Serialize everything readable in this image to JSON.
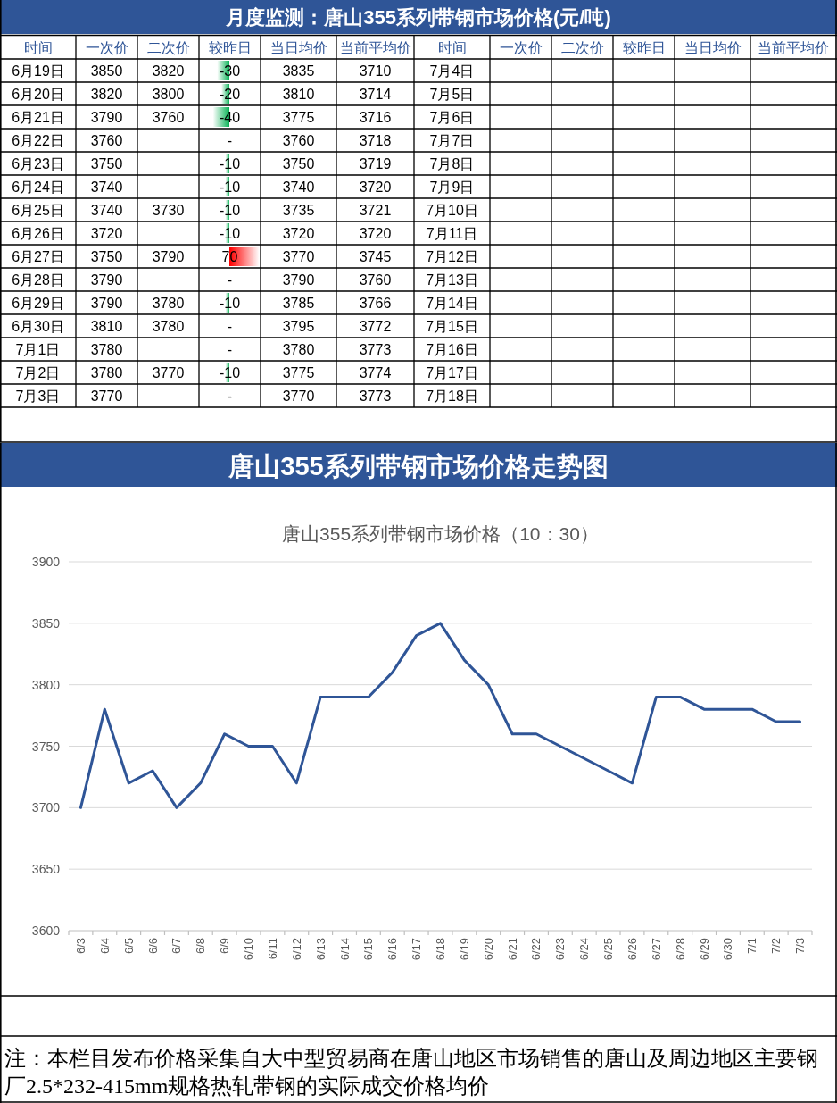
{
  "chart_data": [
    {
      "type": "heatmap",
      "title": "月度监测：唐山355系列带钢市场价格(元/吨)",
      "ylabel": "时间",
      "y2label": "时间",
      "categories": [
        "一次价",
        "二次价",
        "较昨日",
        "当日均价",
        "当前平均价",
        "一次价",
        "二次价",
        "较昨日",
        "当日均价",
        "当前平均价"
      ],
      "y_categories": [
        "6月19日",
        "6月20日",
        "6月21日",
        "6月22日",
        "6月23日",
        "6月24日",
        "6月25日",
        "6月26日",
        "6月27日",
        "6月28日",
        "6月29日",
        "6月30日",
        "7月1日",
        "7月2日",
        "7月3日"
      ],
      "y2_categories": [
        "7月4日",
        "7月5日",
        "7月6日",
        "7月7日",
        "7月8日",
        "7月9日",
        "7月10日",
        "7月11日",
        "7月12日",
        "7月13日",
        "7月14日",
        "7月15日",
        "7月16日",
        "7月17日",
        "7月18日"
      ],
      "cells": [
        [
          3850,
          3820,
          -30,
          3835,
          3710,
          null,
          null,
          null,
          null,
          null
        ],
        [
          3820,
          3800,
          -20,
          3810,
          3714,
          null,
          null,
          null,
          null,
          null
        ],
        [
          3790,
          3760,
          -40,
          3775,
          3716,
          null,
          null,
          null,
          null,
          null
        ],
        [
          3760,
          null,
          null,
          3760,
          3718,
          null,
          null,
          null,
          null,
          null
        ],
        [
          3750,
          null,
          -10,
          3750,
          3719,
          null,
          null,
          null,
          null,
          null
        ],
        [
          3740,
          null,
          -10,
          3740,
          3720,
          null,
          null,
          null,
          null,
          null
        ],
        [
          3740,
          3730,
          -10,
          3735,
          3721,
          null,
          null,
          null,
          null,
          null
        ],
        [
          3720,
          null,
          -10,
          3720,
          3720,
          null,
          null,
          null,
          null,
          null
        ],
        [
          3750,
          3790,
          70,
          3770,
          3745,
          null,
          null,
          null,
          null,
          null
        ],
        [
          3790,
          null,
          null,
          3790,
          3760,
          null,
          null,
          null,
          null,
          null
        ],
        [
          3790,
          3780,
          -10,
          3785,
          3766,
          null,
          null,
          null,
          null,
          null
        ],
        [
          3810,
          3780,
          null,
          3795,
          3772,
          null,
          null,
          null,
          null,
          null
        ],
        [
          3780,
          null,
          null,
          3780,
          3773,
          null,
          null,
          null,
          null,
          null
        ],
        [
          3780,
          3770,
          -10,
          3775,
          3774,
          null,
          null,
          null,
          null,
          null
        ],
        [
          3770,
          null,
          null,
          3770,
          3773,
          null,
          null,
          null,
          null,
          null
        ]
      ],
      "cell_labels": [
        [
          "3850",
          "3820",
          "-30",
          "3835",
          "3710",
          null,
          null,
          null,
          null,
          null
        ],
        [
          "3820",
          "3800",
          "-20",
          "3810",
          "3714",
          null,
          null,
          null,
          null,
          null
        ],
        [
          "3790",
          "3760",
          "-40",
          "3775",
          "3716",
          null,
          null,
          null,
          null,
          null
        ],
        [
          "3760",
          null,
          "-",
          "3760",
          "3718",
          null,
          null,
          null,
          null,
          null
        ],
        [
          "3750",
          null,
          "-10",
          "3750",
          "3719",
          null,
          null,
          null,
          null,
          null
        ],
        [
          "3740",
          null,
          "-10",
          "3740",
          "3720",
          null,
          null,
          null,
          null,
          null
        ],
        [
          "3740",
          "3730",
          "-10",
          "3735",
          "3721",
          null,
          null,
          null,
          null,
          null
        ],
        [
          "3720",
          null,
          "-10",
          "3720",
          "3720",
          null,
          null,
          null,
          null,
          null
        ],
        [
          "3750",
          "3790",
          "70",
          "3770",
          "3745",
          null,
          null,
          null,
          null,
          null
        ],
        [
          "3790",
          null,
          "-",
          "3790",
          "3760",
          null,
          null,
          null,
          null,
          null
        ],
        [
          "3790",
          "3780",
          "-10",
          "3785",
          "3766",
          null,
          null,
          null,
          null,
          null
        ],
        [
          "3810",
          "3780",
          "-",
          "3795",
          "3772",
          null,
          null,
          null,
          null,
          null
        ],
        [
          "3780",
          null,
          "-",
          "3780",
          "3773",
          null,
          null,
          null,
          null,
          null
        ],
        [
          "3780",
          "3770",
          "-10",
          "3775",
          "3774",
          null,
          null,
          null,
          null,
          null
        ],
        [
          "3770",
          null,
          "-",
          "3770",
          "3773",
          null,
          null,
          null,
          null,
          null
        ]
      ]
    },
    {
      "type": "line",
      "title": "唐山355系列带钢市场价格走势图",
      "subtitle": "唐山355系列带钢市场价格（10：30）",
      "categories": [
        "6/3",
        "6/4",
        "6/5",
        "6/6",
        "6/7",
        "6/8",
        "6/9",
        "6/10",
        "6/11",
        "6/12",
        "6/13",
        "6/14",
        "6/15",
        "6/16",
        "6/17",
        "6/18",
        "6/19",
        "6/20",
        "6/21",
        "6/22",
        "6/23",
        "6/24",
        "6/25",
        "6/26",
        "6/27",
        "6/28",
        "6/29",
        "6/30",
        "7/1",
        "7/2",
        "7/3"
      ],
      "values": [
        3700,
        3780,
        3720,
        3730,
        3700,
        3720,
        3760,
        3750,
        3750,
        3720,
        3790,
        3790,
        3790,
        3810,
        3840,
        3850,
        3820,
        3800,
        3760,
        3760,
        3750,
        3740,
        3730,
        3720,
        3790,
        3790,
        3780,
        3780,
        3780,
        3770,
        3770
      ],
      "color": "#2f5597",
      "ylim": [
        3600,
        3900
      ],
      "yticks": [
        3600,
        3650,
        3700,
        3750,
        3800,
        3850,
        3900
      ],
      "grid": "y",
      "annotations": [
        "注：本栏目发布价格采集自大中型贸易商在唐山地区市场销售的唐山及周边地区主要钢厂2.5*232-415mm规格热轧带钢的实际成交价格均价"
      ]
    }
  ]
}
